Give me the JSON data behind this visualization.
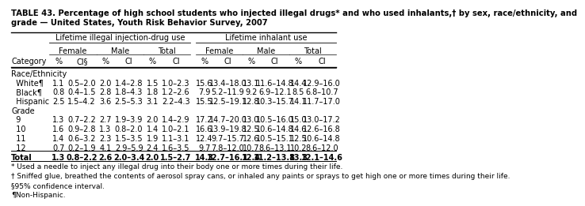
{
  "title": "TABLE 43. Percentage of high school students who injected illegal drugs* and who used inhalants,† by sex, race/ethnicity, and\ngrade — United States, Youth Risk Behavior Survey, 2007",
  "col_headers_l1": [
    "Lifetime illegal injection-drug use",
    "Lifetime inhalant use"
  ],
  "col_headers_l2": [
    "Female",
    "Male",
    "Total",
    "Female",
    "Male",
    "Total"
  ],
  "col_headers_l3": [
    "%",
    "CI§",
    "%",
    "CI",
    "%",
    "CI",
    "%",
    "CI",
    "%",
    "CI",
    "%",
    "CI"
  ],
  "category_col": "Category",
  "section_headers": [
    "Race/Ethnicity",
    "Grade"
  ],
  "rows": [
    {
      "label": "White¶",
      "bold": false,
      "indent": true,
      "values": [
        "1.1",
        "0.5–2.0",
        "2.0",
        "1.4–2.8",
        "1.5",
        "1.0–2.3",
        "15.6",
        "13.4–18.0",
        "13.1",
        "11.6–14.8",
        "14.4",
        "12.9–16.0"
      ]
    },
    {
      "label": "Black¶",
      "bold": false,
      "indent": true,
      "values": [
        "0.8",
        "0.4–1.5",
        "2.8",
        "1.8–4.3",
        "1.8",
        "1.2–2.6",
        "7.9",
        "5.2–11.9",
        "9.2",
        "6.9–12.1",
        "8.5",
        "6.8–10.7"
      ]
    },
    {
      "label": "Hispanic",
      "bold": false,
      "indent": true,
      "values": [
        "2.5",
        "1.5–4.2",
        "3.6",
        "2.5–5.3",
        "3.1",
        "2.2–4.3",
        "15.5",
        "12.5–19.1",
        "12.8",
        "10.3–15.7",
        "14.1",
        "11.7–17.0"
      ]
    },
    {
      "label": "9",
      "bold": false,
      "indent": true,
      "values": [
        "1.3",
        "0.7–2.2",
        "2.7",
        "1.9–3.9",
        "2.0",
        "1.4–2.9",
        "17.2",
        "14.7–20.0",
        "13.0",
        "10.5–16.0",
        "15.0",
        "13.0–17.2"
      ]
    },
    {
      "label": "10",
      "bold": false,
      "indent": true,
      "values": [
        "1.6",
        "0.9–2.8",
        "1.3",
        "0.8–2.0",
        "1.4",
        "1.0–2.1",
        "16.6",
        "13.9–19.8",
        "12.5",
        "10.6–14.8",
        "14.6",
        "12.6–16.8"
      ]
    },
    {
      "label": "11",
      "bold": false,
      "indent": true,
      "values": [
        "1.4",
        "0.6–3.2",
        "2.3",
        "1.5–3.5",
        "1.9",
        "1.1–3.1",
        "12.4",
        "9.7–15.7",
        "12.6",
        "10.5–15.1",
        "12.5",
        "10.6–14.8"
      ]
    },
    {
      "label": "12",
      "bold": false,
      "indent": true,
      "values": [
        "0.7",
        "0.2–1.9",
        "4.1",
        "2.9–5.9",
        "2.4",
        "1.6–3.5",
        "9.7",
        "7.8–12.0",
        "10.7",
        "8.6–13.1",
        "10.2",
        "8.6–12.0"
      ]
    },
    {
      "label": "Total",
      "bold": true,
      "indent": false,
      "values": [
        "1.3",
        "0.8–2.2",
        "2.6",
        "2.0–3.4",
        "2.0",
        "1.5–2.7",
        "14.3",
        "12.7–16.1",
        "12.4",
        "11.2–13.8",
        "13.3",
        "12.1–14.6"
      ]
    }
  ],
  "footnotes": [
    "* Used a needle to inject any illegal drug into their body one or more times during their life.",
    "† Sniffed glue, breathed the contents of aerosol spray cans, or inhaled any paints or sprays to get high one or more times during their life.",
    "§95% confidence interval.",
    "¶Non-Hispanic."
  ],
  "bg_color": "white",
  "text_color": "black",
  "font_size": 7.0,
  "title_font_size": 7.2
}
